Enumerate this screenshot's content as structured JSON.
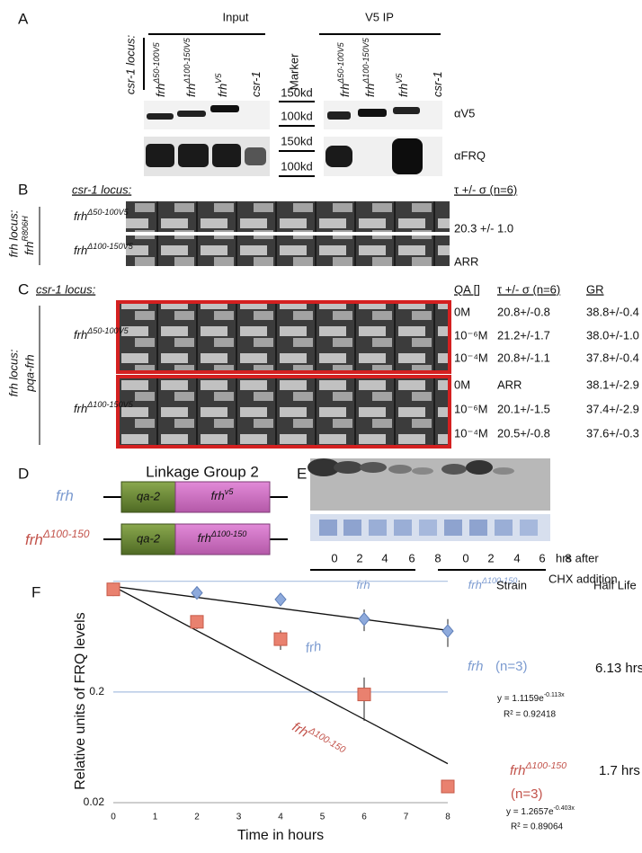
{
  "panel_a": {
    "letter": "A",
    "locus_label": "csr-1 locus:",
    "input_label": "Input",
    "ip_label": "V5 IP",
    "marker_label": "Marker",
    "lanes": [
      {
        "text": "frh",
        "sup": "Δ50-100V5"
      },
      {
        "text": "frh",
        "sup": "Δ100-150V5"
      },
      {
        "text": "frh",
        "sup": "V5"
      },
      {
        "text": "csr-1"
      },
      {
        "text": "frh",
        "sup": "Δ50-100V5"
      },
      {
        "text": "frh",
        "sup": "Δ100-150V5"
      },
      {
        "text": "frh",
        "sup": "V5"
      },
      {
        "text": "csr-1"
      }
    ],
    "markers": [
      "150kd",
      "100kd",
      "150kd",
      "100kd"
    ],
    "blots": [
      "αV5",
      "αFRQ"
    ]
  },
  "panel_b": {
    "letter": "B",
    "header": "csr-1 locus:",
    "value_header": "τ +/- σ (n=6)",
    "locus_label": "frh locus:",
    "locus_allele": {
      "text": "frh",
      "sup": "R806H"
    },
    "rows": [
      {
        "label": {
          "text": "frh",
          "sup": "Δ50-100V5"
        },
        "value": "20.3 +/- 1.0"
      },
      {
        "label": {
          "text": "frh",
          "sup": "Δ100-150V5"
        },
        "value": "ARR"
      }
    ]
  },
  "panel_c": {
    "letter": "C",
    "header": "csr-1 locus:",
    "locus_label": "frh locus:",
    "locus_allele": "pqa-frh",
    "columns": [
      "QA []",
      "τ +/- σ (n=6)",
      "GR"
    ],
    "strains": [
      {
        "text": "frh",
        "sup": "Δ50-100V5"
      },
      {
        "text": "frh",
        "sup": "Δ100-150V5"
      }
    ],
    "rows": [
      [
        "0M",
        "20.8+/-0.8",
        "38.8+/-0.4"
      ],
      [
        "10⁻⁶M",
        "21.2+/-1.7",
        "38.0+/-1.0"
      ],
      [
        "10⁻⁴M",
        "20.8+/-1.1",
        "37.8+/-0.4"
      ],
      [
        "0M",
        "ARR",
        "38.1+/-2.9"
      ],
      [
        "10⁻⁶M",
        "20.1+/-1.5",
        "37.4+/-2.9"
      ],
      [
        "10⁻⁴M",
        "20.5+/-0.8",
        "37.6+/-0.3"
      ]
    ]
  },
  "panel_d": {
    "letter": "D",
    "title": "Linkage Group 2",
    "constructs": [
      {
        "label": {
          "text": "frh"
        },
        "promoter": "qa-2",
        "gene": {
          "text": "frh",
          "sup": "v5"
        }
      },
      {
        "label": {
          "text": "frh",
          "sup": "Δ100-150"
        },
        "promoter": "qa-2",
        "gene": {
          "text": "frh",
          "sup": "Δ100-150"
        }
      }
    ]
  },
  "panel_e": {
    "letter": "E",
    "timepoints": [
      0,
      2,
      4,
      6,
      8,
      0,
      2,
      4,
      6,
      8
    ],
    "axis_label": [
      "hrs after",
      "CHX addition"
    ],
    "groups": [
      {
        "text": "frh"
      },
      {
        "text": "frh",
        "sup": "Δ100-150"
      }
    ]
  },
  "chart_data": {
    "type": "scatter",
    "letter": "F",
    "x_label": "Time in hours",
    "y_label": "Relative units of FRQ levels",
    "strain_header": "Strain",
    "half_life_header": "Half Life",
    "log_y": true,
    "x": [
      0,
      2,
      4,
      6,
      8
    ],
    "xlim": [
      0,
      8
    ],
    "xticks": [
      0,
      1,
      2,
      3,
      4,
      5,
      6,
      7,
      8
    ],
    "ylim": [
      0.02,
      3
    ],
    "yticks": [
      0.02,
      0.2
    ],
    "grid_y": [
      0.2,
      2
    ],
    "series": [
      {
        "name": {
          "text": "frh"
        },
        "n": "(n=3)",
        "color": "#8eaadc",
        "marker": "diamond",
        "values": [
          1.69,
          1.57,
          1.37,
          0.91,
          0.71
        ],
        "errors": [
          0,
          0.15,
          0.15,
          0.2,
          0.2
        ],
        "fit": [
          1.8,
          0.72
        ],
        "equation": {
          "text": "y = 1.1159e",
          "sup": "-0.113x"
        },
        "r2": "R² = 0.92418",
        "half_life": "6.13 hrs"
      },
      {
        "name": {
          "text": "frh",
          "sup": "Δ100-150"
        },
        "n": "(n=3)",
        "color": "#e9816f",
        "marker": "square",
        "values": [
          1.69,
          0.86,
          0.6,
          0.19,
          0.028
        ],
        "errors": [
          0,
          0.12,
          0.12,
          0.08,
          0.003
        ],
        "fit": [
          1.8,
          0.045
        ],
        "equation": {
          "text": "y = 1.2657e",
          "sup": "-0.403x"
        },
        "r2": "R² = 0.89064",
        "half_life": "1.7 hrs"
      }
    ]
  }
}
